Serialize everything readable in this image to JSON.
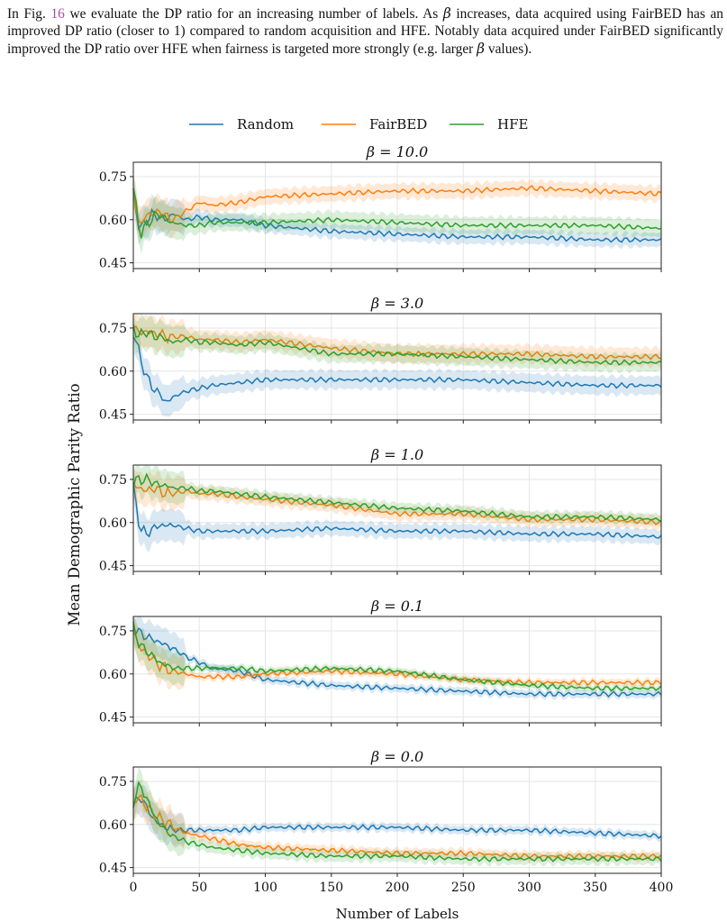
{
  "paragraph": {
    "t1": "In Fig. ",
    "figref": "16",
    "t2": " we evaluate the DP ratio for an increasing number of labels. As ",
    "beta1": "β",
    "t3": " increases, data acquired using FairBED has an improved DP ratio (closer to 1) compared to random acquisition and HFE. Notably data acquired under FairBED significantly improved the DP ratio over HFE when fairness is targeted more strongly (e.g. larger ",
    "beta2": "β",
    "t4": " values)."
  },
  "figure": {
    "legend": [
      "Random",
      "FairBED",
      "HFE"
    ],
    "ylabel": "Mean Demographic Parity Ratio",
    "xlabel": "Number of Labels",
    "colors": {
      "Random": "#1f77b4",
      "FairBED": "#ff7f0e",
      "HFE": "#2ca02c"
    }
  },
  "chart_data": [
    {
      "type": "line",
      "title": "β = 10.0",
      "xlim": [
        0,
        400
      ],
      "ylim": [
        0.43,
        0.8
      ],
      "xticks": [
        0,
        50,
        100,
        150,
        200,
        250,
        300,
        350,
        400
      ],
      "yticks": [
        "0.45",
        "0.60",
        "0.75"
      ],
      "grid": true,
      "legend": "top",
      "x": [
        0,
        5,
        10,
        15,
        20,
        25,
        30,
        40,
        50,
        60,
        80,
        100,
        150,
        200,
        250,
        300,
        350,
        400
      ],
      "series": [
        {
          "name": "Random",
          "values": [
            0.69,
            0.56,
            0.6,
            0.62,
            0.61,
            0.6,
            0.62,
            0.6,
            0.61,
            0.6,
            0.6,
            0.58,
            0.56,
            0.55,
            0.54,
            0.54,
            0.53,
            0.53
          ]
        },
        {
          "name": "FairBED",
          "values": [
            0.7,
            0.57,
            0.62,
            0.62,
            0.63,
            0.61,
            0.6,
            0.63,
            0.66,
            0.65,
            0.66,
            0.68,
            0.69,
            0.7,
            0.7,
            0.71,
            0.7,
            0.69
          ]
        },
        {
          "name": "HFE",
          "values": [
            0.71,
            0.55,
            0.58,
            0.61,
            0.62,
            0.6,
            0.59,
            0.58,
            0.58,
            0.59,
            0.59,
            0.59,
            0.6,
            0.59,
            0.58,
            0.58,
            0.58,
            0.57
          ]
        }
      ]
    },
    {
      "type": "line",
      "title": "β = 3.0",
      "xlim": [
        0,
        400
      ],
      "ylim": [
        0.43,
        0.8
      ],
      "xticks": [
        0,
        50,
        100,
        150,
        200,
        250,
        300,
        350,
        400
      ],
      "yticks": [
        "0.45",
        "0.60",
        "0.75"
      ],
      "grid": true,
      "x": [
        0,
        5,
        10,
        15,
        20,
        25,
        30,
        40,
        50,
        60,
        80,
        100,
        150,
        200,
        250,
        300,
        350,
        400
      ],
      "series": [
        {
          "name": "Random",
          "values": [
            0.74,
            0.65,
            0.58,
            0.54,
            0.52,
            0.49,
            0.51,
            0.53,
            0.54,
            0.55,
            0.56,
            0.57,
            0.57,
            0.57,
            0.57,
            0.56,
            0.55,
            0.55
          ]
        },
        {
          "name": "FairBED",
          "values": [
            0.76,
            0.73,
            0.74,
            0.73,
            0.73,
            0.72,
            0.72,
            0.72,
            0.71,
            0.71,
            0.7,
            0.71,
            0.68,
            0.66,
            0.66,
            0.66,
            0.65,
            0.65
          ]
        },
        {
          "name": "HFE",
          "values": [
            0.75,
            0.72,
            0.74,
            0.72,
            0.72,
            0.71,
            0.7,
            0.71,
            0.7,
            0.7,
            0.69,
            0.7,
            0.66,
            0.66,
            0.65,
            0.64,
            0.63,
            0.63
          ]
        }
      ]
    },
    {
      "type": "line",
      "title": "β = 1.0",
      "xlim": [
        0,
        400
      ],
      "ylim": [
        0.43,
        0.8
      ],
      "xticks": [
        0,
        50,
        100,
        150,
        200,
        250,
        300,
        350,
        400
      ],
      "yticks": [
        "0.45",
        "0.60",
        "0.75"
      ],
      "grid": true,
      "x": [
        0,
        5,
        10,
        15,
        20,
        25,
        30,
        40,
        50,
        60,
        80,
        100,
        150,
        200,
        250,
        300,
        350,
        400
      ],
      "series": [
        {
          "name": "Random",
          "values": [
            0.72,
            0.58,
            0.56,
            0.58,
            0.59,
            0.59,
            0.59,
            0.58,
            0.57,
            0.57,
            0.57,
            0.57,
            0.58,
            0.57,
            0.57,
            0.56,
            0.56,
            0.55
          ]
        },
        {
          "name": "FairBED",
          "values": [
            0.73,
            0.72,
            0.71,
            0.72,
            0.71,
            0.7,
            0.7,
            0.71,
            0.7,
            0.7,
            0.69,
            0.68,
            0.66,
            0.63,
            0.63,
            0.61,
            0.61,
            0.6
          ]
        },
        {
          "name": "HFE",
          "values": [
            0.74,
            0.75,
            0.75,
            0.74,
            0.73,
            0.73,
            0.72,
            0.72,
            0.71,
            0.71,
            0.7,
            0.69,
            0.67,
            0.65,
            0.64,
            0.62,
            0.62,
            0.61
          ]
        }
      ]
    },
    {
      "type": "line",
      "title": "β = 0.1",
      "xlim": [
        0,
        400
      ],
      "ylim": [
        0.43,
        0.8
      ],
      "xticks": [
        0,
        50,
        100,
        150,
        200,
        250,
        300,
        350,
        400
      ],
      "yticks": [
        "0.45",
        "0.60",
        "0.75"
      ],
      "grid": true,
      "x": [
        0,
        5,
        10,
        15,
        20,
        25,
        30,
        40,
        50,
        60,
        80,
        100,
        150,
        200,
        250,
        300,
        350,
        400
      ],
      "series": [
        {
          "name": "Random",
          "values": [
            0.77,
            0.74,
            0.73,
            0.72,
            0.71,
            0.7,
            0.69,
            0.66,
            0.64,
            0.62,
            0.61,
            0.58,
            0.56,
            0.55,
            0.54,
            0.53,
            0.53,
            0.53
          ]
        },
        {
          "name": "FairBED",
          "values": [
            0.75,
            0.69,
            0.67,
            0.65,
            0.63,
            0.62,
            0.61,
            0.6,
            0.59,
            0.59,
            0.59,
            0.6,
            0.61,
            0.6,
            0.58,
            0.57,
            0.57,
            0.57
          ]
        },
        {
          "name": "HFE",
          "values": [
            0.76,
            0.7,
            0.68,
            0.66,
            0.64,
            0.63,
            0.62,
            0.62,
            0.62,
            0.62,
            0.62,
            0.61,
            0.62,
            0.61,
            0.58,
            0.56,
            0.55,
            0.55
          ]
        }
      ]
    },
    {
      "type": "line",
      "title": "β = 0.0",
      "xlim": [
        0,
        400
      ],
      "ylim": [
        0.43,
        0.8
      ],
      "xticks": [
        0,
        50,
        100,
        150,
        200,
        250,
        300,
        350,
        400
      ],
      "yticks": [
        "0.45",
        "0.60",
        "0.75"
      ],
      "grid": true,
      "x": [
        0,
        5,
        10,
        15,
        20,
        25,
        30,
        40,
        50,
        60,
        80,
        100,
        150,
        200,
        250,
        300,
        350,
        400
      ],
      "series": [
        {
          "name": "Random",
          "values": [
            0.66,
            0.7,
            0.66,
            0.62,
            0.6,
            0.59,
            0.58,
            0.58,
            0.58,
            0.58,
            0.58,
            0.59,
            0.59,
            0.59,
            0.58,
            0.58,
            0.57,
            0.56
          ]
        },
        {
          "name": "FairBED",
          "values": [
            0.67,
            0.7,
            0.66,
            0.64,
            0.62,
            0.61,
            0.59,
            0.57,
            0.56,
            0.55,
            0.53,
            0.52,
            0.51,
            0.5,
            0.5,
            0.49,
            0.49,
            0.49
          ]
        },
        {
          "name": "HFE",
          "values": [
            0.68,
            0.74,
            0.69,
            0.64,
            0.6,
            0.58,
            0.56,
            0.54,
            0.53,
            0.52,
            0.51,
            0.5,
            0.49,
            0.49,
            0.48,
            0.48,
            0.48,
            0.48
          ]
        }
      ]
    }
  ]
}
